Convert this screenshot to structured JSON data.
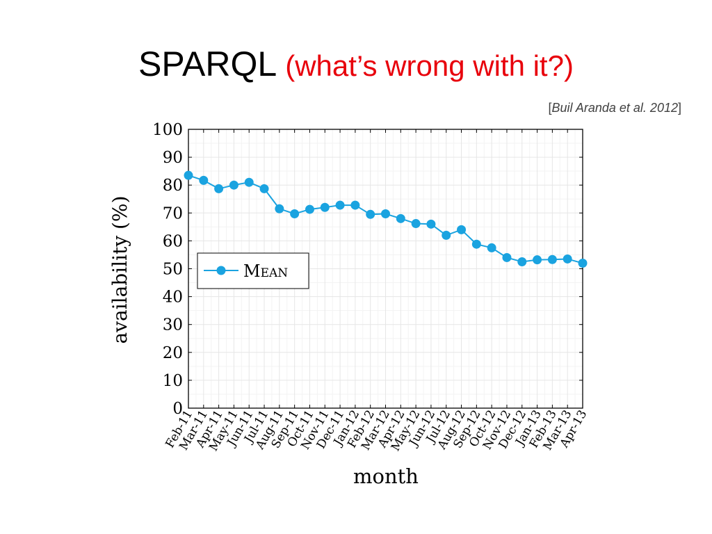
{
  "slide": {
    "title_main": "SPARQL",
    "title_sub": "(what’s wrong with it?)",
    "citation_name": "Buil Aranda et al. 2012",
    "colors": {
      "title_main": "#000000",
      "title_sub": "#e8000b",
      "series": "#1aa3e0",
      "grid": "#e6e6e6",
      "axis": "#000000"
    }
  },
  "chart_data": {
    "type": "line",
    "title": "",
    "xlabel": "month",
    "ylabel": "availability (%)",
    "ylim": [
      0,
      100
    ],
    "yticks": [
      0,
      10,
      20,
      30,
      40,
      50,
      60,
      70,
      80,
      90,
      100
    ],
    "grid": true,
    "legend_position": "left-middle",
    "categories": [
      "Feb-11",
      "Mar-11",
      "Apr-11",
      "May-11",
      "Jun-11",
      "Jul-11",
      "Aug-11",
      "Sep-11",
      "Oct-11",
      "Nov-11",
      "Dec-11",
      "Jan-12",
      "Feb-12",
      "Mar-12",
      "Apr-12",
      "May-12",
      "Jun-12",
      "Jul-12",
      "Aug-12",
      "Sep-12",
      "Oct-12",
      "Nov-12",
      "Dec-12",
      "Jan-13",
      "Feb-13",
      "Mar-13",
      "Apr-13"
    ],
    "series": [
      {
        "name": "Mean",
        "values": [
          83.5,
          81.7,
          78.7,
          80.0,
          81.0,
          78.7,
          71.5,
          69.7,
          71.3,
          72.0,
          72.8,
          72.8,
          69.5,
          69.7,
          68.0,
          66.2,
          66.0,
          62.0,
          64.0,
          58.8,
          57.5,
          54.0,
          52.5,
          53.2,
          53.3,
          53.5,
          52.0
        ]
      }
    ]
  }
}
